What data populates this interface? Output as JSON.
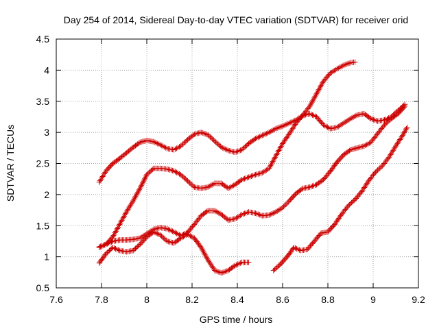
{
  "chart_data": {
    "type": "scatter",
    "title": "Day 254 of 2014, Sidereal Day-to-day VTEC variation (SDTVAR) for receiver orid",
    "xlabel": "GPS time / hours",
    "ylabel": "SDTVAR / TECUs",
    "xlim": [
      7.6,
      9.2
    ],
    "ylim": [
      0.5,
      4.5
    ],
    "xticks": [
      "7.6",
      "7.8",
      "8",
      "8.2",
      "8.4",
      "8.6",
      "8.8",
      "9",
      "9.2"
    ],
    "yticks": [
      "0.5",
      "1",
      "1.5",
      "2",
      "2.5",
      "3",
      "3.5",
      "4",
      "4.5"
    ],
    "grid": true,
    "marker": "+",
    "color": "#cc0000",
    "series": [
      {
        "x": [
          7.79,
          7.82,
          7.85,
          7.88,
          7.91,
          7.94,
          7.97,
          8.0,
          8.03,
          8.06,
          8.09,
          8.12,
          8.15,
          8.18,
          8.21,
          8.24,
          8.27,
          8.3,
          8.33,
          8.36,
          8.39,
          8.42,
          8.45,
          8.48,
          8.51,
          8.54,
          8.57,
          8.6,
          8.63,
          8.66,
          8.69,
          8.72,
          8.75,
          8.78,
          8.81,
          8.84,
          8.87,
          8.9,
          8.93,
          8.96,
          8.99,
          9.02,
          9.05,
          9.08,
          9.11,
          9.14
        ],
        "y": [
          2.2,
          2.38,
          2.5,
          2.58,
          2.67,
          2.76,
          2.84,
          2.87,
          2.85,
          2.8,
          2.74,
          2.72,
          2.78,
          2.88,
          2.97,
          3.0,
          2.96,
          2.86,
          2.76,
          2.71,
          2.68,
          2.72,
          2.82,
          2.9,
          2.95,
          3.0,
          3.06,
          3.1,
          3.15,
          3.2,
          3.27,
          3.3,
          3.25,
          3.12,
          3.06,
          3.08,
          3.15,
          3.22,
          3.28,
          3.3,
          3.22,
          3.18,
          3.2,
          3.25,
          3.35,
          3.45
        ]
      },
      {
        "x": [
          7.79,
          7.82,
          7.85,
          7.88,
          7.91,
          7.94,
          7.97,
          8.0,
          8.03,
          8.06,
          8.09,
          8.12,
          8.15,
          8.18,
          8.21,
          8.24,
          8.27,
          8.3,
          8.33,
          8.36,
          8.39,
          8.42,
          8.45,
          8.48,
          8.51,
          8.54,
          8.57,
          8.6,
          8.63,
          8.66,
          8.69,
          8.72,
          8.75,
          8.78,
          8.81,
          8.84,
          8.87,
          8.9,
          8.92
        ],
        "y": [
          1.16,
          1.2,
          1.32,
          1.52,
          1.72,
          1.9,
          2.1,
          2.32,
          2.42,
          2.42,
          2.41,
          2.38,
          2.32,
          2.22,
          2.12,
          2.1,
          2.12,
          2.18,
          2.18,
          2.1,
          2.16,
          2.24,
          2.28,
          2.32,
          2.35,
          2.42,
          2.62,
          2.82,
          2.98,
          3.15,
          3.28,
          3.42,
          3.62,
          3.82,
          3.95,
          4.02,
          4.08,
          4.12,
          4.13
        ]
      },
      {
        "x": [
          7.79,
          7.82,
          7.85,
          7.88,
          7.91,
          7.94,
          7.97,
          8.0,
          8.03,
          8.06,
          8.09,
          8.12,
          8.15,
          8.18,
          8.21,
          8.24,
          8.27,
          8.3,
          8.33,
          8.36,
          8.39,
          8.42,
          8.45,
          8.48,
          8.51,
          8.54,
          8.57,
          8.6,
          8.63,
          8.66,
          8.69,
          8.72,
          8.75,
          8.78,
          8.81,
          8.84,
          8.87,
          8.9,
          8.93,
          8.96,
          8.99,
          9.02,
          9.05,
          9.08,
          9.11,
          9.14
        ],
        "y": [
          1.15,
          1.2,
          1.25,
          1.27,
          1.27,
          1.28,
          1.3,
          1.37,
          1.44,
          1.47,
          1.45,
          1.4,
          1.34,
          1.39,
          1.52,
          1.66,
          1.74,
          1.74,
          1.68,
          1.59,
          1.61,
          1.68,
          1.72,
          1.7,
          1.66,
          1.67,
          1.72,
          1.79,
          1.9,
          2.02,
          2.1,
          2.12,
          2.16,
          2.24,
          2.37,
          2.52,
          2.64,
          2.72,
          2.75,
          2.78,
          2.84,
          2.98,
          3.12,
          3.22,
          3.3,
          3.42
        ]
      },
      {
        "x": [
          7.79,
          7.82,
          7.85,
          7.88,
          7.91,
          7.94,
          7.97,
          8.0,
          8.03,
          8.06,
          8.09,
          8.12,
          8.15,
          8.18,
          8.21,
          8.24,
          8.27,
          8.3,
          8.33,
          8.36,
          8.39,
          8.42,
          8.45
        ],
        "y": [
          0.9,
          1.05,
          1.15,
          1.1,
          1.08,
          1.1,
          1.2,
          1.32,
          1.4,
          1.35,
          1.25,
          1.22,
          1.3,
          1.36,
          1.3,
          1.15,
          0.95,
          0.78,
          0.74,
          0.78,
          0.86,
          0.91,
          0.91
        ]
      },
      {
        "x": [
          8.56,
          8.59,
          8.62,
          8.65,
          8.68,
          8.71,
          8.74,
          8.77,
          8.8,
          8.83,
          8.86,
          8.89,
          8.92,
          8.95,
          8.98,
          9.01,
          9.04,
          9.07,
          9.1,
          9.13,
          9.15
        ],
        "y": [
          0.78,
          0.88,
          1.0,
          1.15,
          1.1,
          1.12,
          1.25,
          1.38,
          1.4,
          1.52,
          1.68,
          1.82,
          1.92,
          2.05,
          2.22,
          2.36,
          2.46,
          2.6,
          2.78,
          2.95,
          3.08
        ]
      }
    ]
  }
}
